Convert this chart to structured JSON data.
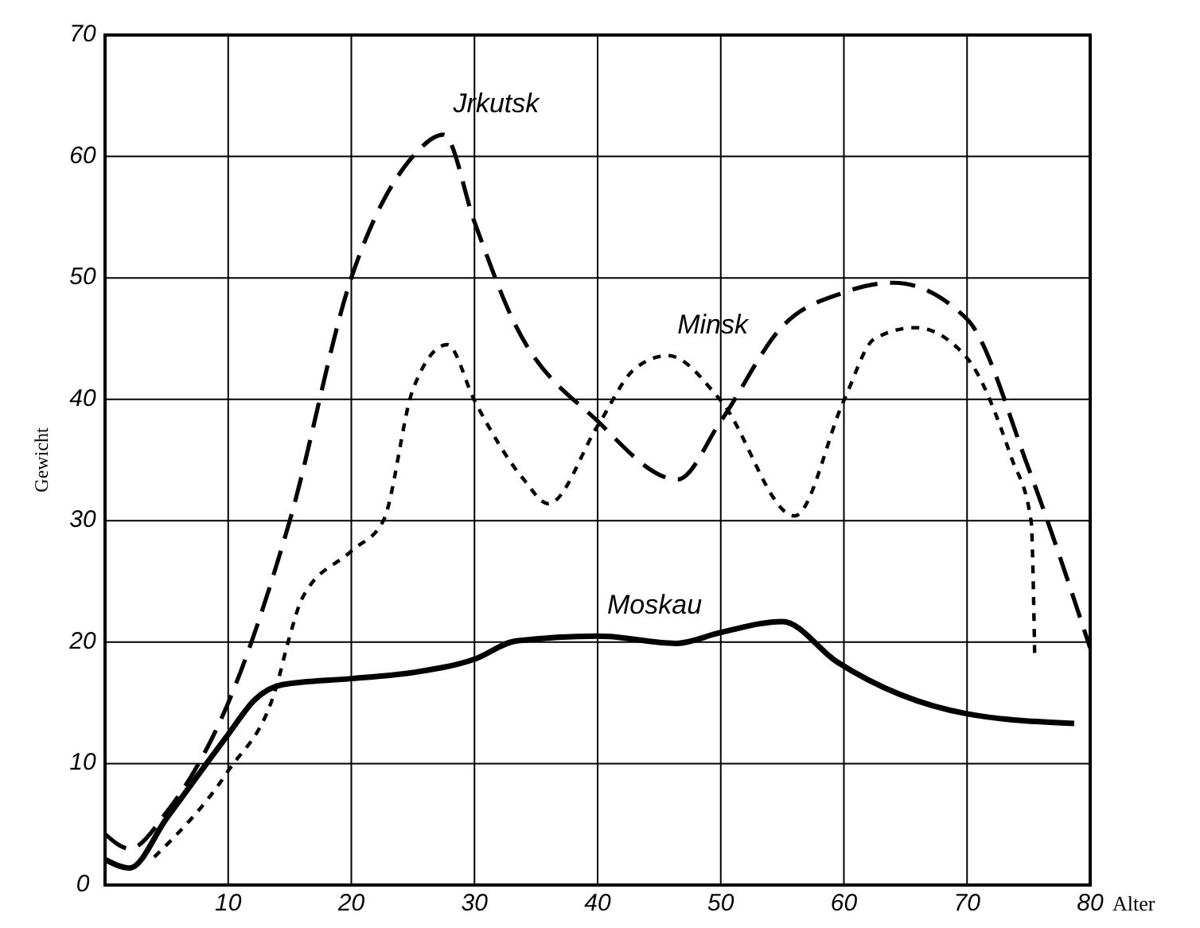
{
  "chart_data": {
    "type": "line",
    "xlabel": "Alter",
    "ylabel": "Gewicht",
    "xlim": [
      0,
      80
    ],
    "ylim": [
      0,
      70
    ],
    "xticks": [
      {
        "value": 0,
        "label": null
      },
      10,
      20,
      30,
      40,
      50,
      60,
      70,
      80
    ],
    "yticks": [
      0,
      10,
      20,
      30,
      40,
      50,
      60,
      70
    ],
    "grid": true,
    "series": [
      {
        "name": "Jrkutsk",
        "color": "#000000",
        "line_style": "dashed",
        "x": [
          0,
          2,
          5,
          10,
          15,
          20,
          25,
          27.5,
          30,
          33,
          40,
          46.5,
          50,
          55,
          60,
          64,
          70,
          75,
          80
        ],
        "values": [
          4.2,
          3,
          6,
          15,
          30,
          50,
          60,
          61.8,
          54.6,
          46.8,
          38.2,
          33.4,
          38.2,
          46,
          48.8,
          49.6,
          46.6,
          34.3,
          19.5
        ]
      },
      {
        "name": "Minsk",
        "color": "#000000",
        "line_style": "dotted",
        "x": [
          4,
          10,
          13.9,
          15,
          16,
          20,
          22.6,
          25,
          27.8,
          30,
          34,
          36,
          40,
          43,
          45.7,
          50,
          56,
          60,
          62.5,
          65.8,
          70,
          73.6,
          75.2,
          75.5
        ],
        "values": [
          2.3,
          9.4,
          16.3,
          20.5,
          23.6,
          27.5,
          30,
          40.8,
          44.5,
          39.9,
          33.4,
          31.4,
          37.8,
          42.5,
          43.6,
          39.9,
          30.4,
          39.9,
          45,
          45.9,
          43.4,
          35.2,
          30,
          18.6
        ]
      },
      {
        "name": "Moskau",
        "color": "#000000",
        "line_style": "solid",
        "x": [
          0,
          2,
          5,
          10,
          12.2,
          14.4,
          20,
          25,
          30,
          33.4,
          40,
          46.4,
          50,
          55,
          59.4,
          70,
          78.7
        ],
        "values": [
          2.1,
          1.4,
          5.5,
          12.4,
          15.3,
          16.5,
          17,
          17.5,
          18.6,
          20.1,
          20.5,
          19.9,
          20.8,
          21.7,
          18.4,
          14.1,
          13.3
        ]
      }
    ]
  }
}
